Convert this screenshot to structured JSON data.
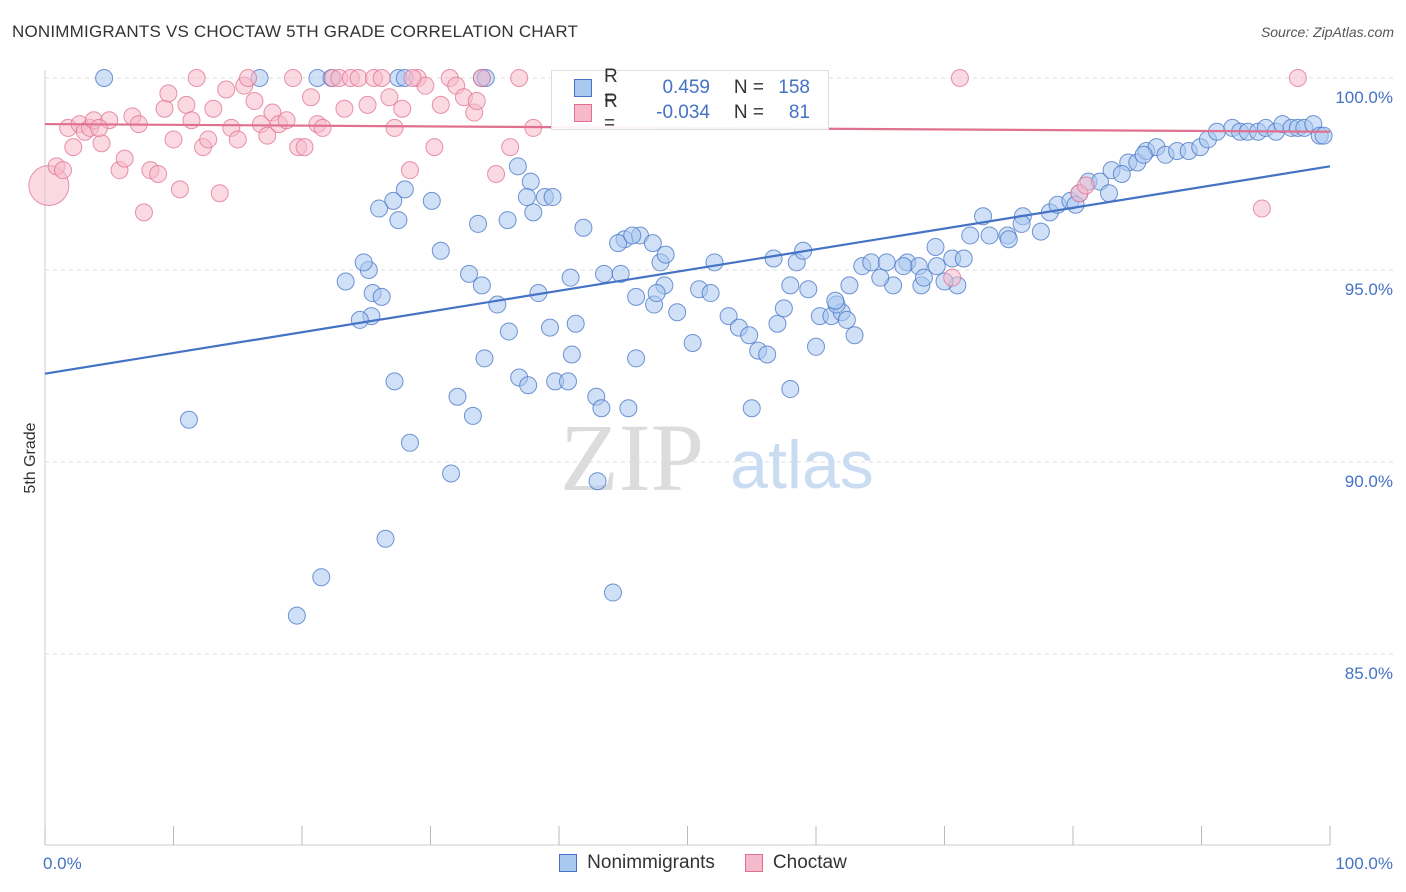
{
  "header": {
    "title": "NONIMMIGRANTS VS CHOCTAW 5TH GRADE CORRELATION CHART",
    "source": "Source: ZipAtlas.com"
  },
  "watermark": {
    "zip": "ZIP",
    "atlas": "atlas"
  },
  "legend": {
    "rows": [
      {
        "r_label": "R =",
        "r_value": "0.459",
        "n_label": "N =",
        "n_value": "158",
        "color": "#a9c8f0",
        "border": "#4472c4"
      },
      {
        "r_label": "R =",
        "r_value": "-0.034",
        "n_label": "N =",
        "n_value": "81",
        "color": "#f6b9cc",
        "border": "#e07090"
      }
    ]
  },
  "bottom_legend": [
    {
      "label": "Nonimmigrants",
      "color": "#a9c8f0",
      "border": "#4472c4"
    },
    {
      "label": "Choctaw",
      "color": "#f6b9cc",
      "border": "#e07090"
    }
  ],
  "chart_data": {
    "type": "scatter",
    "title": "NONIMMIGRANTS VS CHOCTAW 5TH GRADE CORRELATION CHART",
    "xlabel": "",
    "ylabel": "5th Grade",
    "xlim": [
      0,
      100
    ],
    "ylim": [
      80.5,
      101
    ],
    "x_tick_labels": [
      "0.0%",
      "100.0%"
    ],
    "y_ticks": [
      85,
      90,
      95,
      100
    ],
    "y_tick_labels": [
      "85.0%",
      "90.0%",
      "95.0%",
      "100.0%"
    ],
    "grid": true,
    "legend_position": "top-center",
    "series": [
      {
        "name": "Nonimmigrants",
        "color": "#4472c4",
        "fill": "#a9c8f0",
        "trend": {
          "x": [
            0,
            100
          ],
          "y": [
            92.3,
            97.7
          ]
        },
        "points": [
          [
            4.6,
            100
          ],
          [
            16.7,
            100
          ],
          [
            21.2,
            100
          ],
          [
            22.3,
            100
          ],
          [
            27.5,
            100
          ],
          [
            28.0,
            100
          ],
          [
            34.0,
            100
          ],
          [
            34.3,
            100
          ],
          [
            11.2,
            91.1
          ],
          [
            25.2,
            95.0
          ],
          [
            25.5,
            94.4
          ],
          [
            24.8,
            95.2
          ],
          [
            23.4,
            94.7
          ],
          [
            26.2,
            94.3
          ],
          [
            27.1,
            96.8
          ],
          [
            26.0,
            96.6
          ],
          [
            27.5,
            96.3
          ],
          [
            25.4,
            93.8
          ],
          [
            24.5,
            93.7
          ],
          [
            28.0,
            97.1
          ],
          [
            27.2,
            92.1
          ],
          [
            30.1,
            96.8
          ],
          [
            30.8,
            95.5
          ],
          [
            33.0,
            94.9
          ],
          [
            34.0,
            94.6
          ],
          [
            32.1,
            91.7
          ],
          [
            31.6,
            89.7
          ],
          [
            33.3,
            91.2
          ],
          [
            28.4,
            90.5
          ],
          [
            26.5,
            88.0
          ],
          [
            19.6,
            86.0
          ],
          [
            21.5,
            87.0
          ],
          [
            36.8,
            97.7
          ],
          [
            36.0,
            96.3
          ],
          [
            37.8,
            97.3
          ],
          [
            38.0,
            96.5
          ],
          [
            38.9,
            96.9
          ],
          [
            37.5,
            96.9
          ],
          [
            39.5,
            96.9
          ],
          [
            41.9,
            96.1
          ],
          [
            35.2,
            94.1
          ],
          [
            40.9,
            94.8
          ],
          [
            41.3,
            93.6
          ],
          [
            41.0,
            92.8
          ],
          [
            39.7,
            92.1
          ],
          [
            36.9,
            92.2
          ],
          [
            37.6,
            92.0
          ],
          [
            34.2,
            92.7
          ],
          [
            42.9,
            91.7
          ],
          [
            43.3,
            91.4
          ],
          [
            45.4,
            91.4
          ],
          [
            43.0,
            89.5
          ],
          [
            44.2,
            86.6
          ],
          [
            43.5,
            94.9
          ],
          [
            45.1,
            95.8
          ],
          [
            46.3,
            95.9
          ],
          [
            44.6,
            95.7
          ],
          [
            45.7,
            95.9
          ],
          [
            46.0,
            94.3
          ],
          [
            47.3,
            95.7
          ],
          [
            47.9,
            95.2
          ],
          [
            48.2,
            94.6
          ],
          [
            47.4,
            94.1
          ],
          [
            49.2,
            93.9
          ],
          [
            47.6,
            94.4
          ],
          [
            50.9,
            94.5
          ],
          [
            52.1,
            95.2
          ],
          [
            51.8,
            94.4
          ],
          [
            53.2,
            93.8
          ],
          [
            54.0,
            93.5
          ],
          [
            54.8,
            93.3
          ],
          [
            55.5,
            92.9
          ],
          [
            56.2,
            92.8
          ],
          [
            57.0,
            93.6
          ],
          [
            58.0,
            94.6
          ],
          [
            58.5,
            95.2
          ],
          [
            59.4,
            94.5
          ],
          [
            60.0,
            93.0
          ],
          [
            60.3,
            93.8
          ],
          [
            61.2,
            93.8
          ],
          [
            62.0,
            93.9
          ],
          [
            61.6,
            94.1
          ],
          [
            62.6,
            94.6
          ],
          [
            63.6,
            95.1
          ],
          [
            64.3,
            95.2
          ],
          [
            65.5,
            95.2
          ],
          [
            66.0,
            94.6
          ],
          [
            65.0,
            94.8
          ],
          [
            67.1,
            95.2
          ],
          [
            68.0,
            95.1
          ],
          [
            68.2,
            94.6
          ],
          [
            69.4,
            95.1
          ],
          [
            70.6,
            95.3
          ],
          [
            71.5,
            95.3
          ],
          [
            72.0,
            95.9
          ],
          [
            73.5,
            95.9
          ],
          [
            74.9,
            95.9
          ],
          [
            75.0,
            95.8
          ],
          [
            76.1,
            96.4
          ],
          [
            77.5,
            96.0
          ],
          [
            78.2,
            96.5
          ],
          [
            78.8,
            96.7
          ],
          [
            79.8,
            96.8
          ],
          [
            80.5,
            97.0
          ],
          [
            81.2,
            97.3
          ],
          [
            82.1,
            97.3
          ],
          [
            83.0,
            97.6
          ],
          [
            84.3,
            97.8
          ],
          [
            85.0,
            97.8
          ],
          [
            85.7,
            98.1
          ],
          [
            86.5,
            98.2
          ],
          [
            87.2,
            98.0
          ],
          [
            88.1,
            98.1
          ],
          [
            89.0,
            98.1
          ],
          [
            89.9,
            98.2
          ],
          [
            90.5,
            98.4
          ],
          [
            91.2,
            98.6
          ],
          [
            92.4,
            98.7
          ],
          [
            93.0,
            98.6
          ],
          [
            93.6,
            98.6
          ],
          [
            94.4,
            98.6
          ],
          [
            95.0,
            98.7
          ],
          [
            95.8,
            98.6
          ],
          [
            96.3,
            98.8
          ],
          [
            97.0,
            98.7
          ],
          [
            97.5,
            98.7
          ],
          [
            98.0,
            98.7
          ],
          [
            98.7,
            98.8
          ],
          [
            99.2,
            98.5
          ],
          [
            99.5,
            98.5
          ],
          [
            71.0,
            94.6
          ],
          [
            68.4,
            94.8
          ],
          [
            73.0,
            96.4
          ],
          [
            66.8,
            95.1
          ],
          [
            62.4,
            93.7
          ],
          [
            58.0,
            91.9
          ],
          [
            55.0,
            91.4
          ],
          [
            50.4,
            93.1
          ],
          [
            48.3,
            95.4
          ],
          [
            46.0,
            92.7
          ],
          [
            63.0,
            93.3
          ],
          [
            56.7,
            95.3
          ],
          [
            59.0,
            95.5
          ],
          [
            61.5,
            94.2
          ],
          [
            69.3,
            95.6
          ],
          [
            70.0,
            94.7
          ],
          [
            76.0,
            96.2
          ],
          [
            85.5,
            98.0
          ],
          [
            83.8,
            97.5
          ],
          [
            80.2,
            96.7
          ],
          [
            82.8,
            97.0
          ],
          [
            57.5,
            94.0
          ],
          [
            39.3,
            93.5
          ],
          [
            38.4,
            94.4
          ],
          [
            40.7,
            92.1
          ],
          [
            36.1,
            93.4
          ],
          [
            33.7,
            96.2
          ],
          [
            44.8,
            94.9
          ]
        ]
      },
      {
        "name": "Choctaw",
        "color": "#e07090",
        "fill": "#f6b9cc",
        "trend": {
          "x": [
            0,
            100
          ],
          "y": [
            98.8,
            98.6
          ]
        },
        "points": [
          [
            0.3,
            97.2
          ],
          [
            0.9,
            97.7
          ],
          [
            1.4,
            97.6
          ],
          [
            1.8,
            98.7
          ],
          [
            2.2,
            98.2
          ],
          [
            2.7,
            98.8
          ],
          [
            3.1,
            98.6
          ],
          [
            3.5,
            98.7
          ],
          [
            3.8,
            98.9
          ],
          [
            4.4,
            98.3
          ],
          [
            5.0,
            98.9
          ],
          [
            5.8,
            97.6
          ],
          [
            6.2,
            97.9
          ],
          [
            6.8,
            99.0
          ],
          [
            7.3,
            98.8
          ],
          [
            7.7,
            96.5
          ],
          [
            8.2,
            97.6
          ],
          [
            8.8,
            97.5
          ],
          [
            9.3,
            99.2
          ],
          [
            9.6,
            99.6
          ],
          [
            10.0,
            98.4
          ],
          [
            10.5,
            97.1
          ],
          [
            11.0,
            99.3
          ],
          [
            11.4,
            98.9
          ],
          [
            11.8,
            100
          ],
          [
            12.3,
            98.2
          ],
          [
            12.7,
            98.4
          ],
          [
            13.1,
            99.2
          ],
          [
            13.6,
            97.0
          ],
          [
            14.1,
            99.7
          ],
          [
            14.5,
            98.7
          ],
          [
            15.0,
            98.4
          ],
          [
            15.5,
            99.8
          ],
          [
            15.8,
            100
          ],
          [
            16.3,
            99.4
          ],
          [
            16.8,
            98.8
          ],
          [
            17.3,
            98.5
          ],
          [
            17.7,
            99.1
          ],
          [
            18.2,
            98.8
          ],
          [
            18.8,
            98.9
          ],
          [
            19.3,
            100
          ],
          [
            19.7,
            98.2
          ],
          [
            20.2,
            98.2
          ],
          [
            20.7,
            99.5
          ],
          [
            21.2,
            98.8
          ],
          [
            21.6,
            98.7
          ],
          [
            22.4,
            100
          ],
          [
            22.9,
            100
          ],
          [
            23.3,
            99.2
          ],
          [
            23.8,
            100
          ],
          [
            24.4,
            100
          ],
          [
            25.1,
            99.3
          ],
          [
            25.6,
            100
          ],
          [
            26.2,
            100
          ],
          [
            26.8,
            99.5
          ],
          [
            27.2,
            98.7
          ],
          [
            27.8,
            99.2
          ],
          [
            28.4,
            97.6
          ],
          [
            29.0,
            100
          ],
          [
            29.6,
            99.8
          ],
          [
            30.3,
            98.2
          ],
          [
            30.8,
            99.3
          ],
          [
            31.5,
            100
          ],
          [
            32.0,
            99.8
          ],
          [
            32.6,
            99.5
          ],
          [
            33.4,
            99.1
          ],
          [
            34.0,
            100
          ],
          [
            35.1,
            97.5
          ],
          [
            36.2,
            98.2
          ],
          [
            36.9,
            100
          ],
          [
            38.0,
            98.7
          ],
          [
            44.0,
            100
          ],
          [
            33.6,
            99.4
          ],
          [
            28.6,
            100
          ],
          [
            70.6,
            94.8
          ],
          [
            71.2,
            100
          ],
          [
            80.5,
            97.0
          ],
          [
            81.0,
            97.2
          ],
          [
            94.7,
            96.6
          ],
          [
            97.5,
            100
          ],
          [
            4.2,
            98.7
          ]
        ]
      }
    ]
  }
}
